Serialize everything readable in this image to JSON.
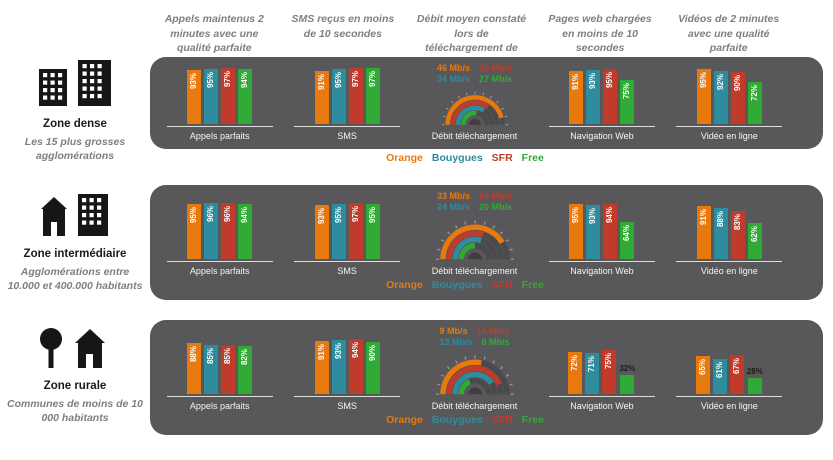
{
  "header": {
    "columns": [
      "Appels maintenus 2 minutes avec une qualité parfaite",
      "SMS reçus en moins de 10 secondes",
      "Débit moyen constaté lors de téléchargement de fichier",
      "Pages web chargées en moins de 10 secondes",
      "Vidéos de 2 minutes avec une qualité parfaite"
    ]
  },
  "legend": {
    "items": [
      {
        "label": "Orange",
        "color": "#E8790F"
      },
      {
        "label": "Bouygues",
        "color": "#2E8C9E"
      },
      {
        "label": "SFR",
        "color": "#C13B2B"
      },
      {
        "label": "Free",
        "color": "#2FAB35"
      }
    ]
  },
  "colors": {
    "panel": "#58585A",
    "header_text": "#7F7F7F",
    "bar_label": "#FFFFFF",
    "axis": "#DDDDDD"
  },
  "chart_data": {
    "type": "bar",
    "unit": "%",
    "operators": [
      "Orange",
      "Bouygues",
      "SFR",
      "Free"
    ],
    "operator_colors": [
      "#E8790F",
      "#2E8C9E",
      "#C13B2B",
      "#2FAB35"
    ],
    "zones": [
      {
        "id": "dense",
        "title": "Zone dense",
        "subtitle": "Les 15 plus grosses agglomérations",
        "icon": "city-buildings-icon",
        "charts": [
          {
            "type": "bar",
            "label": "Appels parfaits",
            "values": [
              93,
              95,
              97,
              94
            ]
          },
          {
            "type": "bar",
            "label": "SMS",
            "values": [
              91,
              95,
              97,
              97
            ]
          },
          {
            "type": "gauge",
            "label": "Débit téléchargement",
            "unit": "Mb/s",
            "scale_max": 50,
            "lines": [
              [
                {
                  "operator": "Orange",
                  "text": "46 Mb/s"
                },
                {
                  "operator": "SFR",
                  "text": "35 Mb/s"
                }
              ],
              [
                {
                  "operator": "Bouygues",
                  "text": "34 Mb/s"
                },
                {
                  "operator": "Free",
                  "text": "27 Mb/s"
                }
              ]
            ],
            "values": {
              "Orange": 46,
              "SFR": 35,
              "Bouygues": 34,
              "Free": 27
            }
          },
          {
            "type": "bar",
            "label": "Navigation Web",
            "values": [
              91,
              93,
              95,
              75
            ]
          },
          {
            "type": "bar",
            "label": "Vidéo en ligne",
            "values": [
              95,
              92,
              90,
              72
            ]
          }
        ]
      },
      {
        "id": "intermediaire",
        "title": "Zone intermédiaire",
        "subtitle": "Agglomérations entre 10.000 et 400.000 habitants",
        "icon": "town-buildings-icon",
        "charts": [
          {
            "type": "bar",
            "label": "Appels parfaits",
            "values": [
              95,
              96,
              96,
              94
            ]
          },
          {
            "type": "bar",
            "label": "SMS",
            "values": [
              93,
              95,
              97,
              95
            ]
          },
          {
            "type": "gauge",
            "label": "Débit téléchargement",
            "unit": "Mb/s",
            "scale_max": 40,
            "lines": [
              [
                {
                  "operator": "Orange",
                  "text": "33 Mb/s"
                },
                {
                  "operator": "SFR",
                  "text": "24 Mb/s"
                }
              ],
              [
                {
                  "operator": "Bouygues",
                  "text": "24 Mb/s"
                },
                {
                  "operator": "Free",
                  "text": "20 Mb/s"
                }
              ]
            ],
            "values": {
              "Orange": 33,
              "SFR": 24,
              "Bouygues": 24,
              "Free": 20
            }
          },
          {
            "type": "bar",
            "label": "Navigation Web",
            "values": [
              95,
              93,
              94,
              64
            ]
          },
          {
            "type": "bar",
            "label": "Vidéo en ligne",
            "values": [
              91,
              88,
              83,
              62
            ]
          }
        ]
      },
      {
        "id": "rurale",
        "title": "Zone rurale",
        "subtitle": "Communes de moins de 10 000 habitants",
        "icon": "tree-house-icon",
        "charts": [
          {
            "type": "bar",
            "label": "Appels parfaits",
            "values": [
              88,
              85,
              85,
              82
            ]
          },
          {
            "type": "bar",
            "label": "SMS",
            "values": [
              91,
              93,
              94,
              90
            ]
          },
          {
            "type": "gauge",
            "label": "Débit téléchargement",
            "unit": "Mb/s",
            "scale_max": 16,
            "lines": [
              [
                {
                  "operator": "Orange",
                  "text": "9 Mb/s"
                },
                {
                  "operator": "SFR",
                  "text": "14 Mb/s"
                }
              ],
              [
                {
                  "operator": "Bouygues",
                  "text": "13 Mb/s"
                },
                {
                  "operator": "Free",
                  "text": "6 Mb/s"
                }
              ]
            ],
            "values": {
              "Orange": 9,
              "SFR": 14,
              "Bouygues": 13,
              "Free": 6
            }
          },
          {
            "type": "bar",
            "label": "Navigation Web",
            "values": [
              72,
              71,
              75,
              32
            ]
          },
          {
            "type": "bar",
            "label": "Vidéo en ligne",
            "values": [
              65,
              61,
              67,
              28
            ]
          }
        ]
      }
    ]
  }
}
